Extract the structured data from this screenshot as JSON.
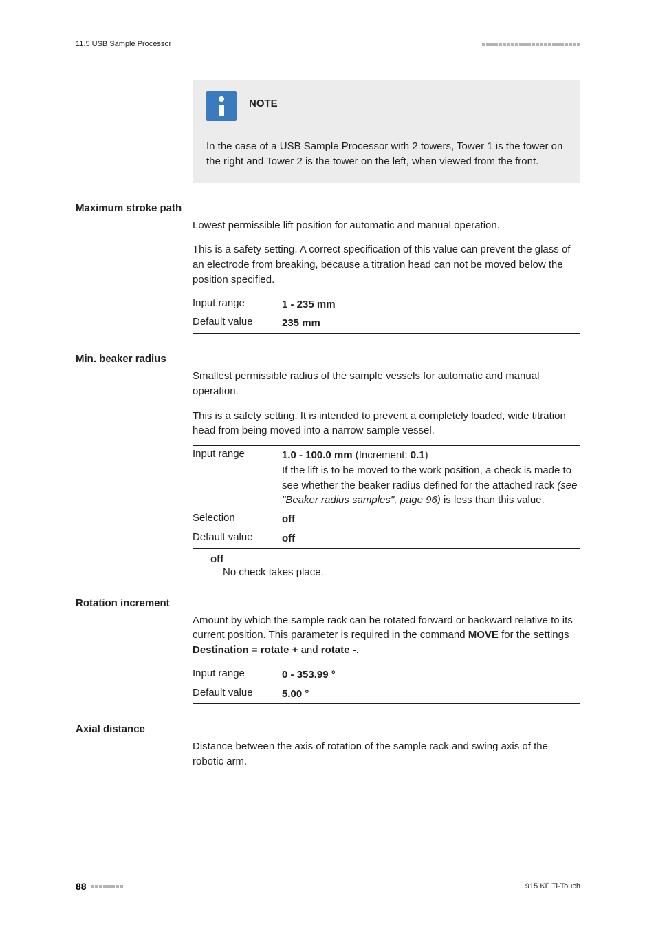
{
  "header": {
    "section": "11.5 USB Sample Processor"
  },
  "note": {
    "title": "NOTE",
    "body": "In the case of a USB Sample Processor with 2 towers, Tower 1 is the tower on the right and Tower 2 is the tower on the left, when viewed from the front."
  },
  "max_stroke": {
    "title": "Maximum stroke path",
    "p1": "Lowest permissible lift position for automatic and manual operation.",
    "p2": "This is a safety setting. A correct specification of this value can prevent the glass of an electrode from breaking, because a titration head can not be moved below the position specified.",
    "rows": {
      "r1_label": "Input range",
      "r1_value": "1 - 235 mm",
      "r2_label": "Default value",
      "r2_value": "235 mm"
    }
  },
  "min_beaker": {
    "title": "Min. beaker radius",
    "p1": "Smallest permissible radius of the sample vessels for automatic and manual operation.",
    "p2": "This is a safety setting. It is intended to prevent a completely loaded, wide titration head from being moved into a narrow sample vessel.",
    "rows": {
      "r1_label": "Input range",
      "r1_val_bold1": "1.0 - 100.0 mm",
      "r1_val_mid": " (Increment: ",
      "r1_val_bold2": "0.1",
      "r1_val_end": ")",
      "r1_line2a": "If the lift is to be moved to the work position, a check is made to see whether the beaker radius defined for the attached rack ",
      "r1_line2b": "(see \"Beaker radius samples\", page 96)",
      "r1_line2c": " is less than this value.",
      "r2_label": "Selection",
      "r2_value": "off",
      "r3_label": "Default value",
      "r3_value": "off"
    },
    "sub": {
      "label": "off",
      "desc": "No check takes place."
    }
  },
  "rotation": {
    "title": "Rotation increment",
    "p1a": "Amount by which the sample rack can be rotated forward or backward relative to its current position. This parameter is required in the command ",
    "p1_bold1": "MOVE",
    "p1b": " for the settings ",
    "p1_bold2": "Destination",
    "p1c": " = ",
    "p1_bold3": "rotate +",
    "p1d": " and ",
    "p1_bold4": "rotate -",
    "p1e": ".",
    "rows": {
      "r1_label": "Input range",
      "r1_value": "0 - 353.99 °",
      "r2_label": "Default value",
      "r2_value": "5.00 °"
    }
  },
  "axial": {
    "title": "Axial distance",
    "p1": "Distance between the axis of rotation of the sample rack and swing axis of the robotic arm."
  },
  "footer": {
    "page": "88",
    "product": "915 KF Ti-Touch"
  }
}
